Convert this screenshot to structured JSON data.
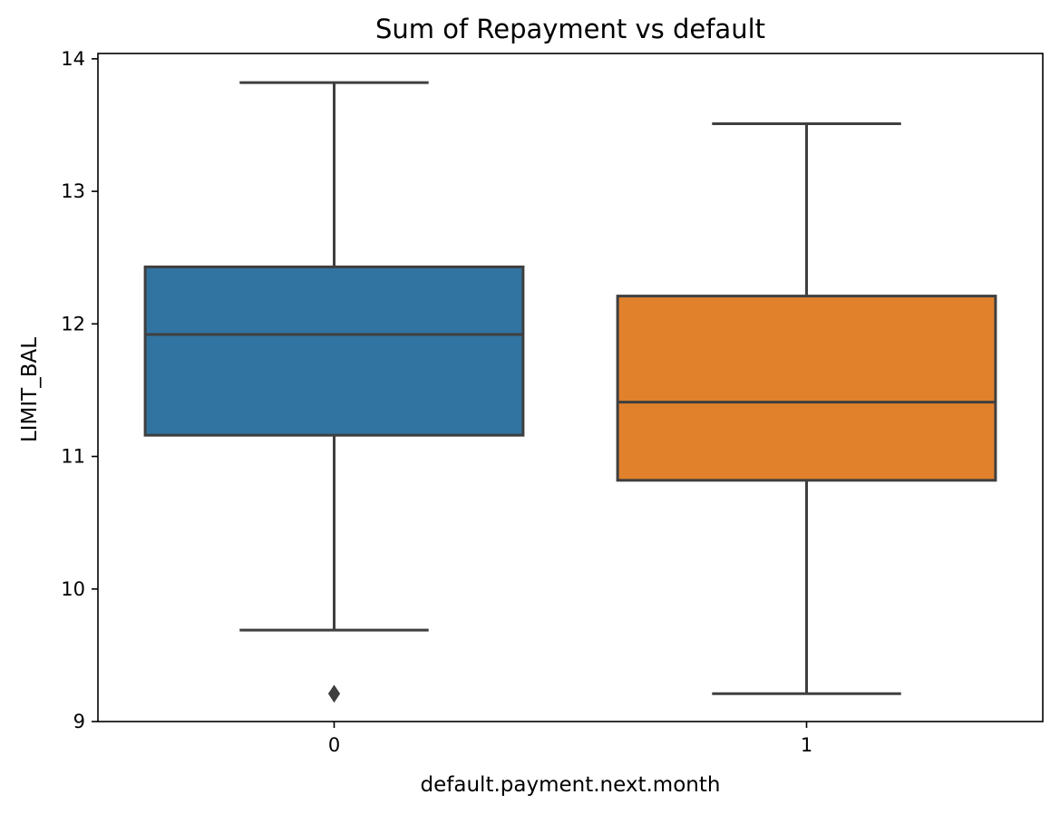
{
  "chart_data": {
    "type": "box",
    "title": "Sum of Repayment vs default",
    "xlabel": "default.payment.next.month",
    "ylabel": "LIMIT_BAL",
    "ylim": [
      9,
      14.04
    ],
    "yticks": [
      9,
      10,
      11,
      12,
      13,
      14
    ],
    "categories": [
      "0",
      "1"
    ],
    "boxes": [
      {
        "category": "0",
        "whisker_low": 9.69,
        "q1": 11.16,
        "median": 11.92,
        "q3": 12.43,
        "whisker_high": 13.82,
        "outliers": [
          9.21
        ],
        "color": "#3274a1"
      },
      {
        "category": "1",
        "whisker_low": 9.21,
        "q1": 10.82,
        "median": 11.41,
        "q3": 12.21,
        "whisker_high": 13.51,
        "outliers": [],
        "color": "#e1812c"
      }
    ],
    "line_color": "#3f3f3f",
    "grid": false,
    "legend": "none"
  }
}
